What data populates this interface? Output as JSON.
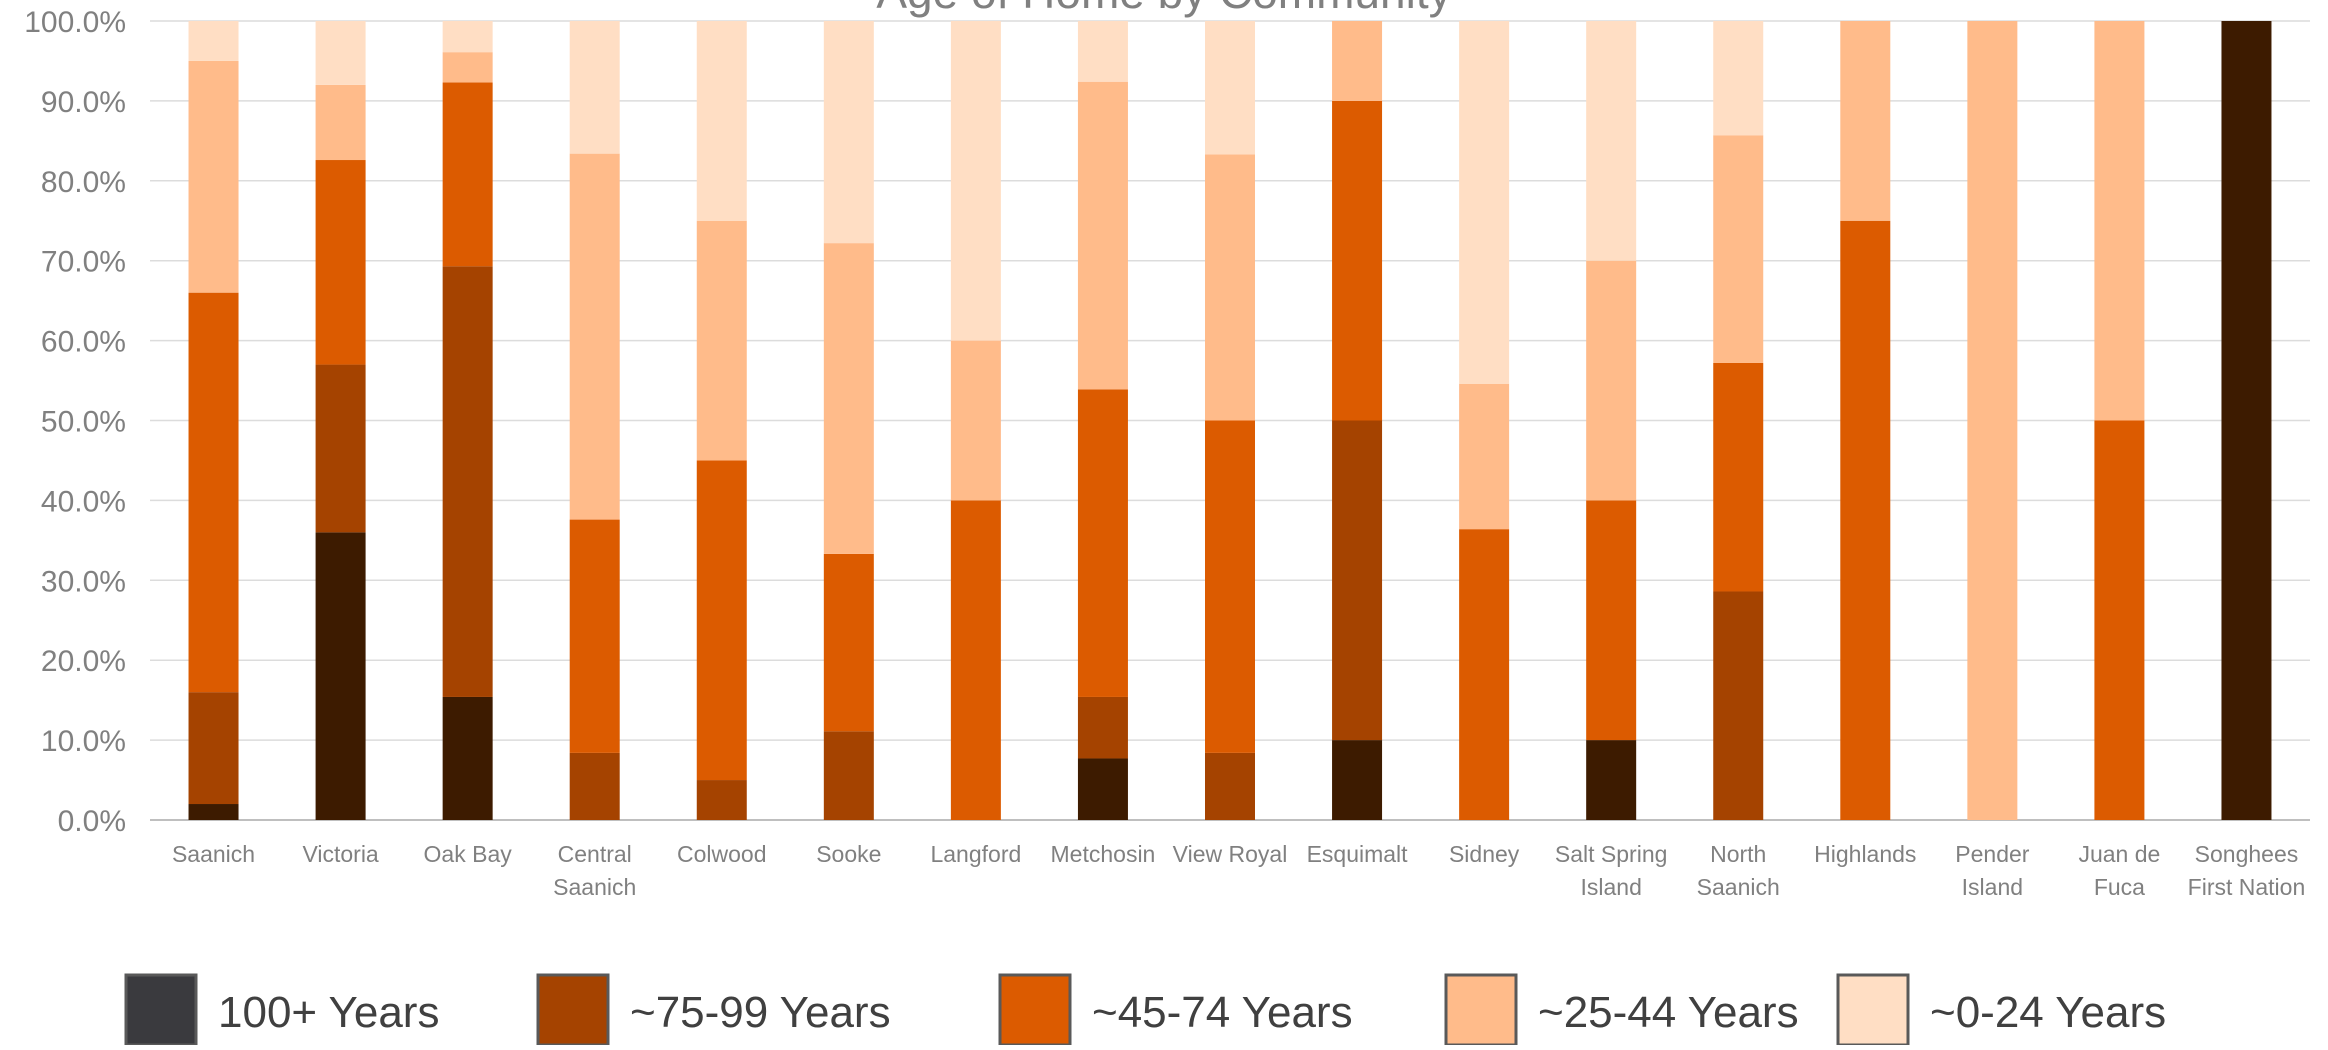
{
  "chart_data": {
    "type": "bar",
    "stacked": true,
    "percent_stacked": true,
    "title": "Age of Home by Community",
    "xlabel": "",
    "ylabel": "",
    "ylim": [
      0,
      100
    ],
    "y_ticks": [
      "0.0%",
      "10.0%",
      "20.0%",
      "30.0%",
      "40.0%",
      "50.0%",
      "60.0%",
      "70.0%",
      "80.0%",
      "90.0%",
      "100.0%"
    ],
    "grid": true,
    "legend_position": "bottom",
    "categories": [
      [
        "Saanich"
      ],
      [
        "Victoria"
      ],
      [
        "Oak Bay"
      ],
      [
        "Central",
        "Saanich"
      ],
      [
        "Colwood"
      ],
      [
        "Sooke"
      ],
      [
        "Langford"
      ],
      [
        "Metchosin"
      ],
      [
        "View Royal"
      ],
      [
        "Esquimalt"
      ],
      [
        "Sidney"
      ],
      [
        "Salt Spring",
        "Island"
      ],
      [
        "North",
        "Saanich"
      ],
      [
        "Highlands"
      ],
      [
        "Pender",
        "Island"
      ],
      [
        "Juan de",
        "Fuca"
      ],
      [
        "Songhees",
        "First Nation"
      ]
    ],
    "series": [
      {
        "name": "100+ Years",
        "color": "#3d1b00",
        "legend_color": "#3a3a3e",
        "values": [
          2.0,
          36.0,
          15.4,
          0,
          0,
          0,
          0,
          7.7,
          0,
          10.0,
          0,
          10.0,
          0,
          0,
          0,
          0,
          100.0
        ]
      },
      {
        "name": "~75-99 Years",
        "color": "#a54300",
        "legend_color": "#a54300",
        "values": [
          14.0,
          21.0,
          53.9,
          8.4,
          5.0,
          11.1,
          0,
          7.7,
          8.4,
          40.0,
          0,
          0,
          28.6,
          0,
          0,
          0,
          0
        ]
      },
      {
        "name": "~45-74 Years",
        "color": "#dc5b00",
        "legend_color": "#dc5b00",
        "values": [
          50.0,
          25.6,
          23.0,
          29.2,
          40.0,
          22.2,
          40.0,
          38.5,
          41.6,
          40.0,
          36.4,
          30.0,
          28.6,
          75.0,
          0,
          50.0,
          0
        ]
      },
      {
        "name": "~25-44 Years",
        "color": "#ffbb8a",
        "legend_color": "#ffbb8a",
        "values": [
          29.0,
          9.4,
          3.8,
          45.8,
          30.0,
          38.9,
          20.0,
          38.5,
          33.3,
          10.0,
          18.2,
          30.0,
          28.5,
          25.0,
          100.0,
          50.0,
          0
        ]
      },
      {
        "name": "~0-24 Years",
        "color": "#ffdec4",
        "legend_color": "#ffdec4",
        "values": [
          5.0,
          8.0,
          3.9,
          16.6,
          25.0,
          27.8,
          40.0,
          7.6,
          16.7,
          0,
          45.4,
          30.0,
          14.3,
          0,
          0,
          0,
          0
        ]
      }
    ]
  }
}
